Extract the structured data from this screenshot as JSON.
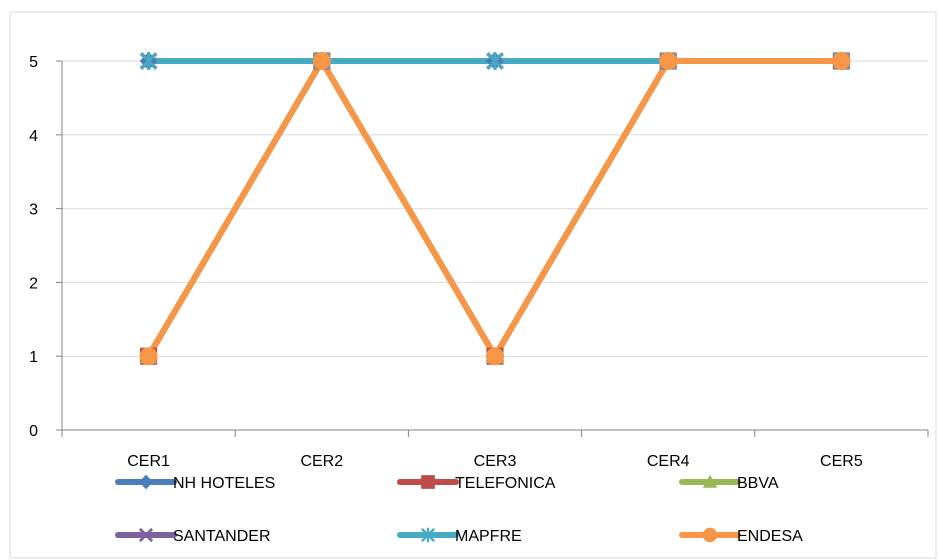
{
  "chart_data": {
    "type": "line",
    "title": "",
    "xlabel": "",
    "ylabel": "",
    "categories": [
      "CER1",
      "CER2",
      "CER3",
      "CER4",
      "CER5"
    ],
    "ylim": [
      0,
      5
    ],
    "yticks": [
      "0",
      "1",
      "2",
      "3",
      "4",
      "5"
    ],
    "grid": true,
    "legend_position": "bottom",
    "series": [
      {
        "name": "NH HOTELES",
        "values": [
          5,
          5,
          5,
          5,
          5
        ],
        "color": "#4a7ebb",
        "marker": "diamond"
      },
      {
        "name": "TELEFONICA",
        "values": [
          1,
          5,
          1,
          5,
          5
        ],
        "color": "#be4b48",
        "marker": "square"
      },
      {
        "name": "BBVA",
        "values": [
          1,
          5,
          1,
          5,
          5
        ],
        "color": "#98b954",
        "marker": "triangle"
      },
      {
        "name": "SANTANDER",
        "values": [
          5,
          5,
          5,
          5,
          5
        ],
        "color": "#7d60a0",
        "marker": "x"
      },
      {
        "name": "MAPFRE",
        "values": [
          5,
          5,
          5,
          5,
          5
        ],
        "color": "#46aac5",
        "marker": "star"
      },
      {
        "name": "ENDESA",
        "values": [
          1,
          5,
          1,
          5,
          5
        ],
        "color": "#f79646",
        "marker": "circle"
      }
    ]
  }
}
